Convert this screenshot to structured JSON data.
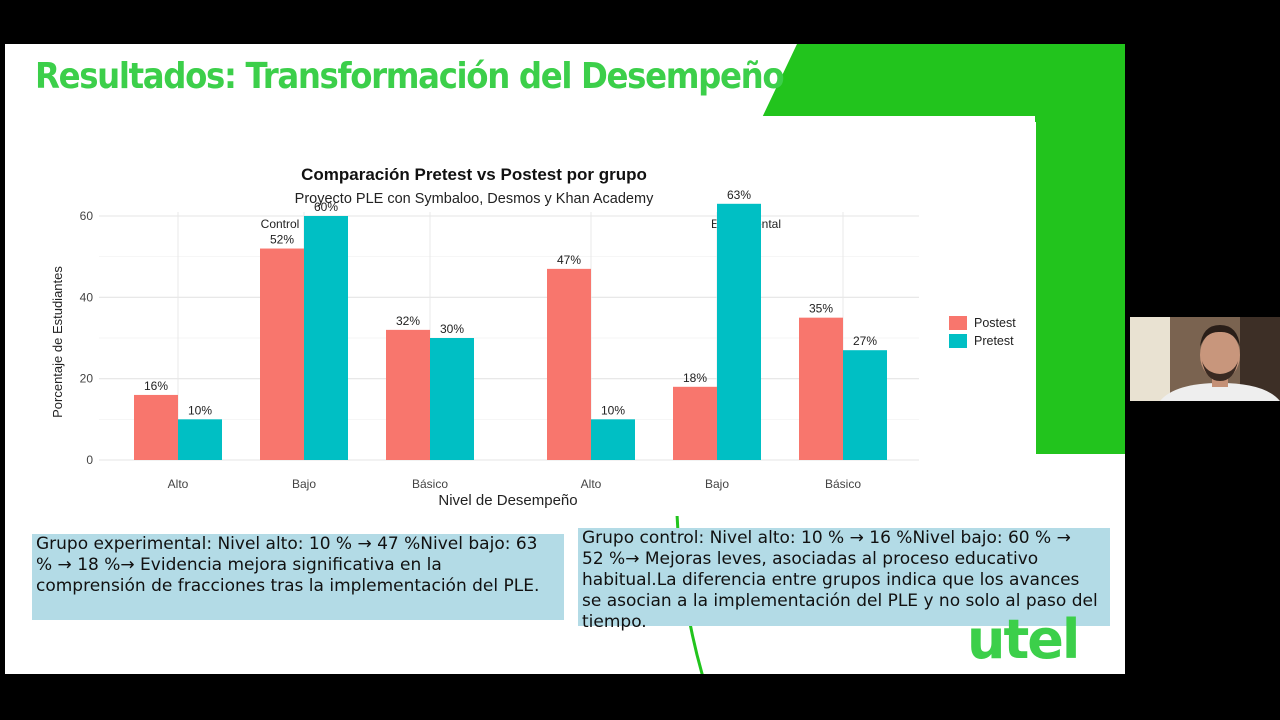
{
  "slide": {
    "title": "Resultados: Transformación del Desempeño",
    "logo_text": "utel",
    "accent_color": "#3ccf4a"
  },
  "chart_data": {
    "type": "bar",
    "title": "Comparación Pretest vs Postest por grupo",
    "subtitle": "Proyecto PLE con Symbaloo, Desmos y Khan Academy",
    "xlabel": "Nivel de Desempeño",
    "ylabel": "Porcentaje de Estudiantes",
    "ylim": [
      0,
      64
    ],
    "yticks": [
      "0",
      "20",
      "40",
      "60"
    ],
    "categories": [
      "Alto",
      "Bajo",
      "Básico"
    ],
    "legend_placement": "right",
    "grid": true,
    "colors": {
      "Postest": "#f8766d",
      "Pretest": "#00bfc4"
    },
    "panels": [
      {
        "name": "Control",
        "series": [
          {
            "name": "Postest",
            "values": [
              16,
              52,
              32
            ],
            "labels": [
              "16%",
              "52%",
              "32%"
            ]
          },
          {
            "name": "Pretest",
            "values": [
              10,
              60,
              30
            ],
            "labels": [
              "10%",
              "60%",
              "30%"
            ]
          }
        ]
      },
      {
        "name": "Experimental",
        "series": [
          {
            "name": "Postest",
            "values": [
              47,
              18,
              35
            ],
            "labels": [
              "47%",
              "18%",
              "35%"
            ]
          },
          {
            "name": "Pretest",
            "values": [
              10,
              63,
              27
            ],
            "labels": [
              "10%",
              "63%",
              "27%"
            ]
          }
        ]
      }
    ]
  },
  "notes": {
    "left": [
      "Grupo experimental: Nivel alto: 10 % → 47 %Nivel bajo: 63",
      "% → 18 %→ Evidencia mejora significativa en la",
      "comprensión de fracciones tras la implementación del PLE."
    ],
    "right": [
      "Grupo control: Nivel alto: 10 % → 16 %Nivel bajo: 60 % →",
      "52 %→ Mejoras leves, asociadas al proceso educativo",
      "habitual.La diferencia entre grupos indica que los avances",
      "se asocian a la implementación del PLE y no solo al paso del",
      "tiempo."
    ]
  }
}
